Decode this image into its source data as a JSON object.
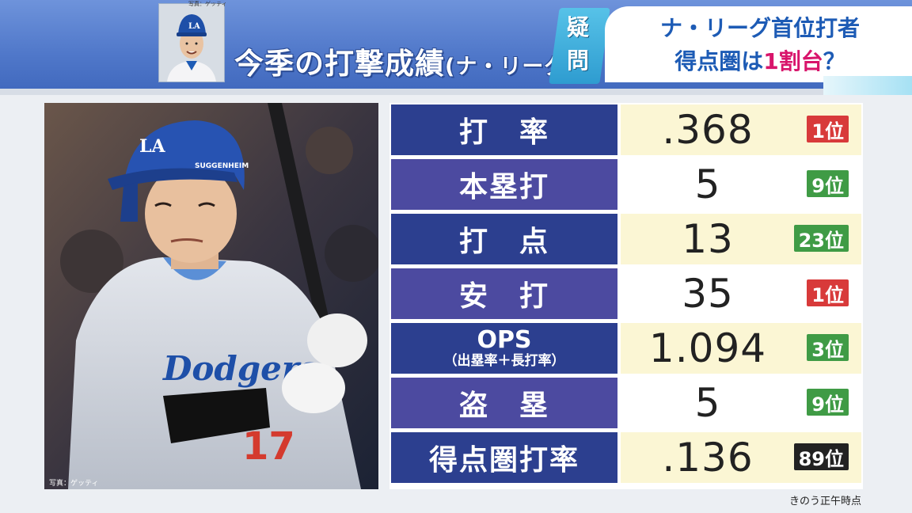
{
  "header": {
    "thumb_credit": "写真：ゲッティ",
    "title_main": "今季の打撃成績",
    "title_sub": "(ナ・リーグ)",
    "badge": [
      "疑",
      "問"
    ],
    "question_line1": "ナ・リーグ首位打者",
    "question_line2_pre": "得点圏は",
    "question_line2_accent": "1割台",
    "question_line2_post": "？"
  },
  "photo": {
    "credit": "写真：ゲッティ",
    "helmet_text": "SUGGENHEIM",
    "jersey_text": "Dodgers",
    "jersey_number": "17"
  },
  "stats": [
    {
      "label": "打　率",
      "value": ".368",
      "rank": "1位",
      "rank_color": "red"
    },
    {
      "label": "本塁打",
      "value": "5",
      "rank": "9位",
      "rank_color": "green"
    },
    {
      "label": "打　点",
      "value": "13",
      "rank": "23位",
      "rank_color": "green"
    },
    {
      "label": "安　打",
      "value": "35",
      "rank": "1位",
      "rank_color": "red"
    },
    {
      "label": "OPS",
      "label_sub": "（出塁率＋長打率）",
      "value": "1.094",
      "rank": "3位",
      "rank_color": "green"
    },
    {
      "label": "盗　塁",
      "value": "5",
      "rank": "9位",
      "rank_color": "green"
    },
    {
      "label": "得点圏打率",
      "value": ".136",
      "rank": "89位",
      "rank_color": "black"
    }
  ],
  "footnote": "きのう正午時点",
  "colors": {
    "header_blue": "#4f77c9",
    "label_dark": "#2c3f8f",
    "label_light": "#4c4aa0",
    "value_cream": "#fbf6d4",
    "rank_red": "#d83a3a",
    "rank_green": "#3f9b45",
    "rank_black": "#222222",
    "accent_pink": "#d8156b"
  }
}
